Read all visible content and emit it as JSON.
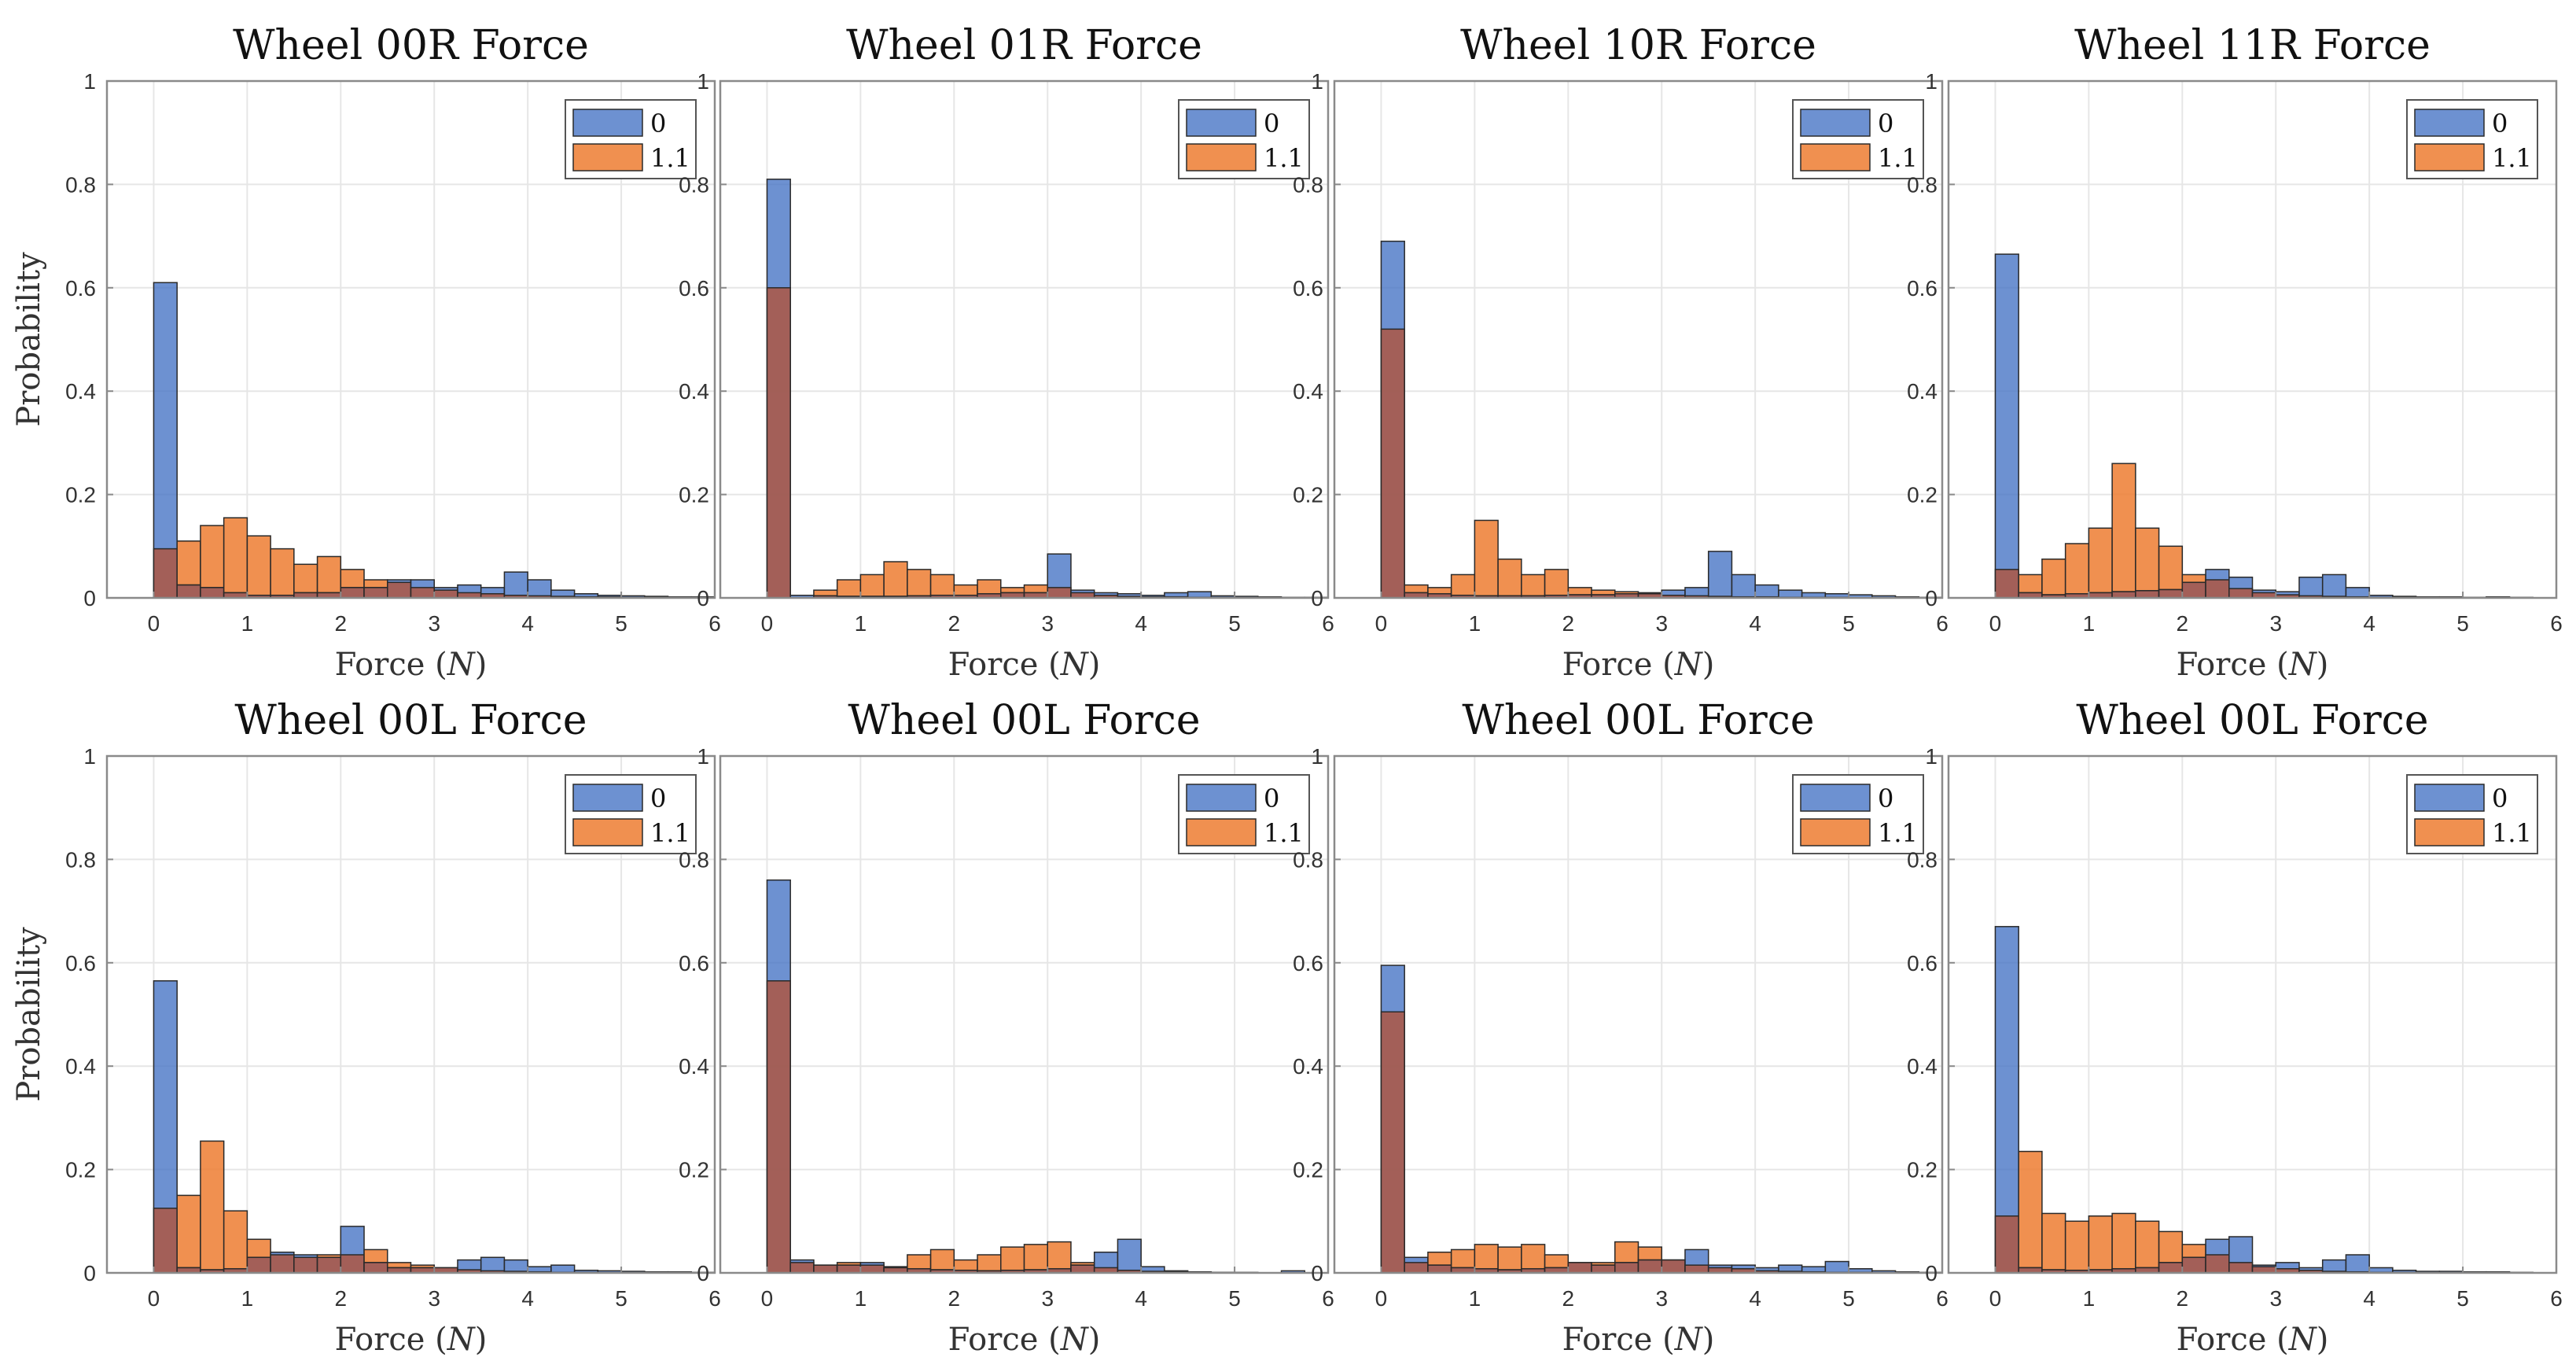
{
  "figure": {
    "xlabel_prefix": "Force (",
    "xlabel_var": "N",
    "xlabel_suffix": ")",
    "ylabel": "Probability",
    "x_ticks": [
      "0",
      "1",
      "2",
      "3",
      "4",
      "5",
      "6"
    ],
    "y_ticks": [
      "0",
      "0.2",
      "0.4",
      "0.6",
      "0.8",
      "1"
    ],
    "legend": [
      "0",
      "1.1"
    ],
    "colors": {
      "series0": "#4472C4",
      "series1": "#ED7D31",
      "overlap": "#A85A4A",
      "grid": "#e6e6e6",
      "axis": "#8a8a8a"
    }
  },
  "chart_data": [
    {
      "type": "bar",
      "title": "Wheel 00R Force",
      "xlabel": "Force (N)",
      "ylabel": "Probability",
      "xlim": [
        -0.5,
        6
      ],
      "ylim": [
        0,
        1
      ],
      "bin_width": 0.25,
      "bin_edges_start": [
        0,
        0.25,
        0.5,
        0.75,
        1.0,
        1.25,
        1.5,
        1.75,
        2.0,
        2.25,
        2.5,
        2.75,
        3.0,
        3.25,
        3.5,
        3.75,
        4.0,
        4.25,
        4.5,
        4.75,
        5.0,
        5.25,
        5.5,
        5.75
      ],
      "series": [
        {
          "name": "0",
          "values": [
            0.61,
            0.025,
            0.02,
            0.01,
            0.005,
            0.005,
            0.01,
            0.01,
            0.02,
            0.02,
            0.035,
            0.035,
            0.02,
            0.025,
            0.02,
            0.05,
            0.035,
            0.015,
            0.008,
            0.005,
            0.004,
            0.003,
            0.002,
            0.002
          ]
        },
        {
          "name": "1.1",
          "values": [
            0.095,
            0.11,
            0.14,
            0.155,
            0.12,
            0.095,
            0.065,
            0.08,
            0.055,
            0.035,
            0.03,
            0.02,
            0.015,
            0.01,
            0.008,
            0.005,
            0.004,
            0.003,
            0.002,
            0.002,
            0.001,
            0.001,
            0.001,
            0.0
          ]
        }
      ]
    },
    {
      "type": "bar",
      "title": "Wheel 01R Force",
      "xlabel": "Force (N)",
      "ylabel": "Probability",
      "xlim": [
        -0.5,
        6
      ],
      "ylim": [
        0,
        1
      ],
      "bin_width": 0.25,
      "bin_edges_start": [
        0,
        0.25,
        0.5,
        0.75,
        1.0,
        1.25,
        1.5,
        1.75,
        2.0,
        2.25,
        2.5,
        2.75,
        3.0,
        3.25,
        3.5,
        3.75,
        4.0,
        4.25,
        4.5,
        4.75,
        5.0,
        5.25,
        5.5,
        5.75
      ],
      "series": [
        {
          "name": "0",
          "values": [
            0.81,
            0.005,
            0.004,
            0.003,
            0.003,
            0.003,
            0.004,
            0.005,
            0.005,
            0.008,
            0.01,
            0.01,
            0.085,
            0.015,
            0.01,
            0.008,
            0.005,
            0.01,
            0.012,
            0.004,
            0.003,
            0.002,
            0.001,
            0.001
          ]
        },
        {
          "name": "1.1",
          "values": [
            0.6,
            0.0,
            0.015,
            0.035,
            0.045,
            0.07,
            0.055,
            0.045,
            0.025,
            0.035,
            0.02,
            0.025,
            0.02,
            0.01,
            0.005,
            0.003,
            0.002,
            0.002,
            0.001,
            0.001,
            0.0,
            0.0,
            0.0,
            0.0
          ]
        }
      ]
    },
    {
      "type": "bar",
      "title": "Wheel 10R Force",
      "xlabel": "Force (N)",
      "ylabel": "Probability",
      "xlim": [
        -0.5,
        6
      ],
      "ylim": [
        0,
        1
      ],
      "bin_width": 0.25,
      "bin_edges_start": [
        0,
        0.25,
        0.5,
        0.75,
        1.0,
        1.25,
        1.5,
        1.75,
        2.0,
        2.25,
        2.5,
        2.75,
        3.0,
        3.25,
        3.5,
        3.75,
        4.0,
        4.25,
        4.5,
        4.75,
        5.0,
        5.25,
        5.5,
        5.75
      ],
      "series": [
        {
          "name": "0",
          "values": [
            0.69,
            0.01,
            0.008,
            0.005,
            0.004,
            0.004,
            0.004,
            0.005,
            0.006,
            0.006,
            0.008,
            0.01,
            0.015,
            0.02,
            0.09,
            0.045,
            0.025,
            0.015,
            0.01,
            0.008,
            0.006,
            0.004,
            0.002,
            0.001
          ]
        },
        {
          "name": "1.1",
          "values": [
            0.52,
            0.025,
            0.02,
            0.045,
            0.15,
            0.075,
            0.045,
            0.055,
            0.02,
            0.015,
            0.012,
            0.008,
            0.005,
            0.004,
            0.003,
            0.002,
            0.002,
            0.001,
            0.001,
            0.001,
            0.0,
            0.0,
            0.0,
            0.0
          ]
        }
      ]
    },
    {
      "type": "bar",
      "title": "Wheel 11R Force",
      "xlabel": "Force (N)",
      "ylabel": "Probability",
      "xlim": [
        -0.5,
        6
      ],
      "ylim": [
        0,
        1
      ],
      "bin_width": 0.25,
      "bin_edges_start": [
        0,
        0.25,
        0.5,
        0.75,
        1.0,
        1.25,
        1.5,
        1.75,
        2.0,
        2.25,
        2.5,
        2.75,
        3.0,
        3.25,
        3.5,
        3.75,
        4.0,
        4.25,
        4.5,
        4.75,
        5.0,
        5.25,
        5.5,
        5.75
      ],
      "series": [
        {
          "name": "0",
          "values": [
            0.665,
            0.01,
            0.006,
            0.008,
            0.01,
            0.012,
            0.014,
            0.016,
            0.03,
            0.055,
            0.04,
            0.015,
            0.012,
            0.04,
            0.045,
            0.02,
            0.005,
            0.003,
            0.002,
            0.002,
            0.001,
            0.002,
            0.001,
            0.0
          ]
        },
        {
          "name": "1.1",
          "values": [
            0.055,
            0.045,
            0.075,
            0.105,
            0.135,
            0.26,
            0.135,
            0.1,
            0.045,
            0.035,
            0.018,
            0.01,
            0.006,
            0.004,
            0.003,
            0.002,
            0.001,
            0.001,
            0.0,
            0.0,
            0.0,
            0.0,
            0.0,
            0.0
          ]
        }
      ]
    },
    {
      "type": "bar",
      "title": "Wheel 00L Force",
      "xlabel": "Force (N)",
      "ylabel": "Probability",
      "xlim": [
        -0.5,
        6
      ],
      "ylim": [
        0,
        1
      ],
      "bin_width": 0.25,
      "bin_edges_start": [
        0,
        0.25,
        0.5,
        0.75,
        1.0,
        1.25,
        1.5,
        1.75,
        2.0,
        2.25,
        2.5,
        2.75,
        3.0,
        3.25,
        3.5,
        3.75,
        4.0,
        4.25,
        4.5,
        4.75,
        5.0,
        5.25,
        5.5,
        5.75
      ],
      "series": [
        {
          "name": "0",
          "values": [
            0.565,
            0.01,
            0.006,
            0.008,
            0.03,
            0.04,
            0.035,
            0.03,
            0.09,
            0.02,
            0.01,
            0.01,
            0.01,
            0.025,
            0.03,
            0.025,
            0.012,
            0.015,
            0.005,
            0.004,
            0.003,
            0.002,
            0.002,
            0.001
          ]
        },
        {
          "name": "1.1",
          "values": [
            0.125,
            0.15,
            0.255,
            0.12,
            0.065,
            0.035,
            0.03,
            0.035,
            0.035,
            0.045,
            0.02,
            0.015,
            0.01,
            0.006,
            0.004,
            0.003,
            0.002,
            0.001,
            0.001,
            0.0,
            0.0,
            0.0,
            0.0,
            0.0
          ]
        }
      ]
    },
    {
      "type": "bar",
      "title": "Wheel 00L Force",
      "xlabel": "Force (N)",
      "ylabel": "Probability",
      "xlim": [
        -0.5,
        6
      ],
      "ylim": [
        0,
        1
      ],
      "bin_width": 0.25,
      "bin_edges_start": [
        0,
        0.25,
        0.5,
        0.75,
        1.0,
        1.25,
        1.5,
        1.75,
        2.0,
        2.25,
        2.5,
        2.75,
        3.0,
        3.25,
        3.5,
        3.75,
        4.0,
        4.25,
        4.5,
        4.75,
        5.0,
        5.25,
        5.5,
        5.75
      ],
      "series": [
        {
          "name": "0",
          "values": [
            0.76,
            0.025,
            0.015,
            0.015,
            0.02,
            0.01,
            0.008,
            0.006,
            0.005,
            0.004,
            0.005,
            0.006,
            0.008,
            0.015,
            0.04,
            0.065,
            0.012,
            0.004,
            0.002,
            0.001,
            0.001,
            0.0,
            0.004,
            0.0
          ]
        },
        {
          "name": "1.1",
          "values": [
            0.565,
            0.02,
            0.015,
            0.02,
            0.015,
            0.012,
            0.035,
            0.045,
            0.025,
            0.035,
            0.05,
            0.055,
            0.06,
            0.02,
            0.01,
            0.005,
            0.003,
            0.002,
            0.001,
            0.001,
            0.0,
            0.0,
            0.0,
            0.0
          ]
        }
      ]
    },
    {
      "type": "bar",
      "title": "Wheel 00L Force",
      "xlabel": "Force (N)",
      "ylabel": "Probability",
      "xlim": [
        -0.5,
        6
      ],
      "ylim": [
        0,
        1
      ],
      "bin_width": 0.25,
      "bin_edges_start": [
        0,
        0.25,
        0.5,
        0.75,
        1.0,
        1.25,
        1.5,
        1.75,
        2.0,
        2.25,
        2.5,
        2.75,
        3.0,
        3.25,
        3.5,
        3.75,
        4.0,
        4.25,
        4.5,
        4.75,
        5.0,
        5.25,
        5.5,
        5.75
      ],
      "series": [
        {
          "name": "0",
          "values": [
            0.595,
            0.03,
            0.015,
            0.01,
            0.008,
            0.006,
            0.008,
            0.01,
            0.02,
            0.015,
            0.02,
            0.025,
            0.025,
            0.045,
            0.015,
            0.015,
            0.01,
            0.015,
            0.012,
            0.022,
            0.008,
            0.004,
            0.002,
            0.001
          ]
        },
        {
          "name": "1.1",
          "values": [
            0.505,
            0.02,
            0.04,
            0.045,
            0.055,
            0.05,
            0.055,
            0.035,
            0.02,
            0.02,
            0.06,
            0.05,
            0.025,
            0.015,
            0.01,
            0.008,
            0.004,
            0.003,
            0.002,
            0.001,
            0.001,
            0.0,
            0.0,
            0.0
          ]
        }
      ]
    },
    {
      "type": "bar",
      "title": "Wheel 00L Force",
      "xlabel": "Force (N)",
      "ylabel": "Probability",
      "xlim": [
        -0.5,
        6
      ],
      "ylim": [
        0,
        1
      ],
      "bin_width": 0.25,
      "bin_edges_start": [
        0,
        0.25,
        0.5,
        0.75,
        1.0,
        1.25,
        1.5,
        1.75,
        2.0,
        2.25,
        2.5,
        2.75,
        3.0,
        3.25,
        3.5,
        3.75,
        4.0,
        4.25,
        4.5,
        4.75,
        5.0,
        5.25,
        5.5,
        5.75
      ],
      "series": [
        {
          "name": "0",
          "values": [
            0.67,
            0.01,
            0.006,
            0.005,
            0.006,
            0.008,
            0.01,
            0.02,
            0.03,
            0.065,
            0.07,
            0.015,
            0.02,
            0.01,
            0.025,
            0.035,
            0.01,
            0.005,
            0.003,
            0.003,
            0.002,
            0.002,
            0.001,
            0.0
          ]
        },
        {
          "name": "1.1",
          "values": [
            0.11,
            0.235,
            0.115,
            0.1,
            0.11,
            0.115,
            0.1,
            0.08,
            0.055,
            0.035,
            0.02,
            0.012,
            0.008,
            0.005,
            0.003,
            0.002,
            0.001,
            0.001,
            0.0,
            0.0,
            0.0,
            0.0,
            0.0,
            0.0
          ]
        }
      ]
    }
  ]
}
